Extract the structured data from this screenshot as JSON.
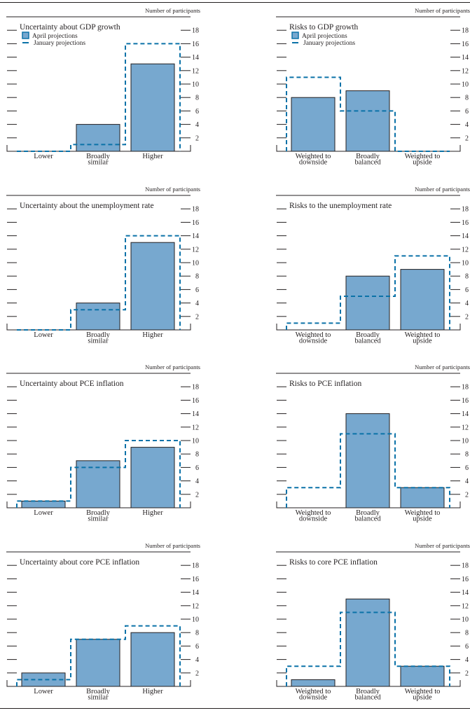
{
  "figure": {
    "unit_label": "Number of participants",
    "legend": {
      "april": "April projections",
      "january": "January projections"
    },
    "colors": {
      "april_fill": "#77a8cf",
      "january_line": "#0b72a8",
      "axis": "#231f20"
    }
  },
  "chart_data": [
    {
      "type": "bar",
      "title": "Uncertainty about GDP growth",
      "ylabel": "Number of participants",
      "categories": [
        "Lower",
        "Broadly similar",
        "Higher"
      ],
      "category_lines": [
        [
          "Lower"
        ],
        [
          "Broadly",
          "similar"
        ],
        [
          "Higher"
        ]
      ],
      "series": [
        {
          "name": "April projections",
          "style": "bar",
          "values": [
            0,
            4,
            13
          ]
        },
        {
          "name": "January projections",
          "style": "dashed-step",
          "values": [
            0,
            1,
            16
          ]
        }
      ],
      "ylim": [
        0,
        18
      ],
      "yticks": [
        2,
        4,
        6,
        8,
        10,
        12,
        14,
        16,
        18
      ],
      "legend_visible": true,
      "legend_position": "top-left"
    },
    {
      "type": "bar",
      "title": "Risks to GDP growth",
      "ylabel": "Number of participants",
      "categories": [
        "Weighted to downside",
        "Broadly balanced",
        "Weighted to upside"
      ],
      "category_lines": [
        [
          "Weighted to",
          "downside"
        ],
        [
          "Broadly",
          "balanced"
        ],
        [
          "Weighted to",
          "upside"
        ]
      ],
      "series": [
        {
          "name": "April projections",
          "style": "bar",
          "values": [
            8,
            9,
            0
          ]
        },
        {
          "name": "January projections",
          "style": "dashed-step",
          "values": [
            11,
            6,
            0
          ]
        }
      ],
      "ylim": [
        0,
        18
      ],
      "yticks": [
        2,
        4,
        6,
        8,
        10,
        12,
        14,
        16,
        18
      ],
      "legend_visible": true,
      "legend_position": "top-left"
    },
    {
      "type": "bar",
      "title": "Uncertainty about the unemployment rate",
      "ylabel": "Number of participants",
      "categories": [
        "Lower",
        "Broadly similar",
        "Higher"
      ],
      "category_lines": [
        [
          "Lower"
        ],
        [
          "Broadly",
          "similar"
        ],
        [
          "Higher"
        ]
      ],
      "series": [
        {
          "name": "April projections",
          "style": "bar",
          "values": [
            0,
            4,
            13
          ]
        },
        {
          "name": "January projections",
          "style": "dashed-step",
          "values": [
            0,
            3,
            14
          ]
        }
      ],
      "ylim": [
        0,
        18
      ],
      "yticks": [
        2,
        4,
        6,
        8,
        10,
        12,
        14,
        16,
        18
      ],
      "legend_visible": false
    },
    {
      "type": "bar",
      "title": "Risks to the unemployment rate",
      "ylabel": "Number of participants",
      "categories": [
        "Weighted to downside",
        "Broadly balanced",
        "Weighted to upside"
      ],
      "category_lines": [
        [
          "Weighted to",
          "downside"
        ],
        [
          "Broadly",
          "balanced"
        ],
        [
          "Weighted to",
          "upside"
        ]
      ],
      "series": [
        {
          "name": "April projections",
          "style": "bar",
          "values": [
            0,
            8,
            9
          ]
        },
        {
          "name": "January projections",
          "style": "dashed-step",
          "values": [
            1,
            5,
            11
          ]
        }
      ],
      "ylim": [
        0,
        18
      ],
      "yticks": [
        2,
        4,
        6,
        8,
        10,
        12,
        14,
        16,
        18
      ],
      "legend_visible": false
    },
    {
      "type": "bar",
      "title": "Uncertainty about PCE inflation",
      "ylabel": "Number of participants",
      "categories": [
        "Lower",
        "Broadly similar",
        "Higher"
      ],
      "category_lines": [
        [
          "Lower"
        ],
        [
          "Broadly",
          "similar"
        ],
        [
          "Higher"
        ]
      ],
      "series": [
        {
          "name": "April projections",
          "style": "bar",
          "values": [
            1,
            7,
            9
          ]
        },
        {
          "name": "January projections",
          "style": "dashed-step",
          "values": [
            1,
            6,
            10
          ]
        }
      ],
      "ylim": [
        0,
        18
      ],
      "yticks": [
        2,
        4,
        6,
        8,
        10,
        12,
        14,
        16,
        18
      ],
      "legend_visible": false
    },
    {
      "type": "bar",
      "title": "Risks to PCE inflation",
      "ylabel": "Number of participants",
      "categories": [
        "Weighted to downside",
        "Broadly balanced",
        "Weighted to upside"
      ],
      "category_lines": [
        [
          "Weighted to",
          "downside"
        ],
        [
          "Broadly",
          "balanced"
        ],
        [
          "Weighted to",
          "upside"
        ]
      ],
      "series": [
        {
          "name": "April projections",
          "style": "bar",
          "values": [
            0,
            14,
            3
          ]
        },
        {
          "name": "January projections",
          "style": "dashed-step",
          "values": [
            3,
            11,
            3
          ]
        }
      ],
      "ylim": [
        0,
        18
      ],
      "yticks": [
        2,
        4,
        6,
        8,
        10,
        12,
        14,
        16,
        18
      ],
      "legend_visible": false
    },
    {
      "type": "bar",
      "title": "Uncertainty about core PCE inflation",
      "ylabel": "Number of participants",
      "categories": [
        "Lower",
        "Broadly similar",
        "Higher"
      ],
      "category_lines": [
        [
          "Lower"
        ],
        [
          "Broadly",
          "similar"
        ],
        [
          "Higher"
        ]
      ],
      "series": [
        {
          "name": "April projections",
          "style": "bar",
          "values": [
            2,
            7,
            8
          ]
        },
        {
          "name": "January projections",
          "style": "dashed-step",
          "values": [
            1,
            7,
            9
          ]
        }
      ],
      "ylim": [
        0,
        18
      ],
      "yticks": [
        2,
        4,
        6,
        8,
        10,
        12,
        14,
        16,
        18
      ],
      "legend_visible": false
    },
    {
      "type": "bar",
      "title": "Risks to core PCE inflation",
      "ylabel": "Number of participants",
      "categories": [
        "Weighted to downside",
        "Broadly balanced",
        "Weighted to upside"
      ],
      "category_lines": [
        [
          "Weighted to",
          "downside"
        ],
        [
          "Broadly",
          "balanced"
        ],
        [
          "Weighted to",
          "upside"
        ]
      ],
      "series": [
        {
          "name": "April projections",
          "style": "bar",
          "values": [
            1,
            13,
            3
          ]
        },
        {
          "name": "January projections",
          "style": "dashed-step",
          "values": [
            3,
            11,
            3
          ]
        }
      ],
      "ylim": [
        0,
        18
      ],
      "yticks": [
        2,
        4,
        6,
        8,
        10,
        12,
        14,
        16,
        18
      ],
      "legend_visible": false
    }
  ]
}
